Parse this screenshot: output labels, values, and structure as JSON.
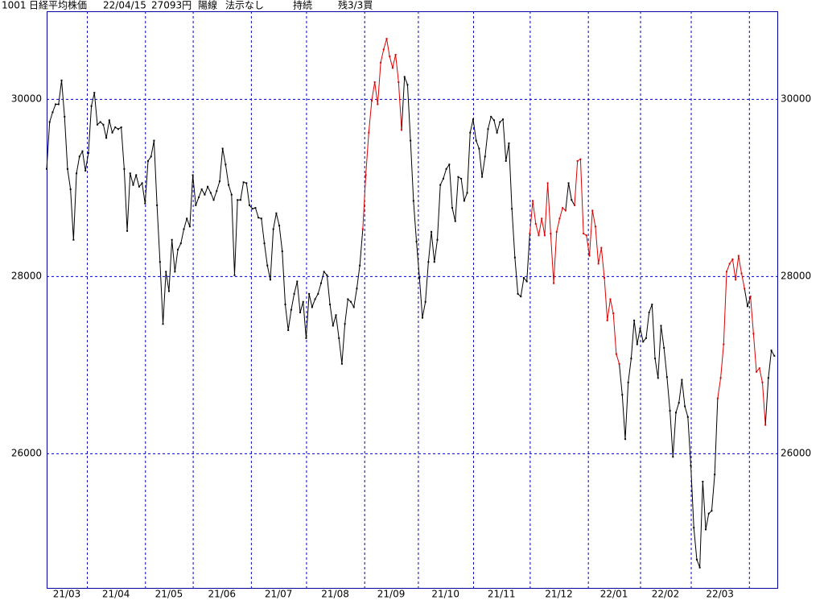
{
  "header": [
    "1001",
    "日経平均株価",
    "22/04/15",
    "27093円",
    "陽線",
    "法示なし",
    "持続",
    "残3/3買"
  ],
  "chart_data": {
    "type": "line",
    "values": [
      29210,
      29740,
      29850,
      29940,
      29940,
      30210,
      29800,
      29210,
      28980,
      28410,
      29160,
      29350,
      29410,
      29190,
      29390,
      29920,
      30070,
      29710,
      29740,
      29710,
      29560,
      29760,
      29620,
      29680,
      29660,
      29680,
      29210,
      28510,
      29160,
      29030,
      29140,
      29010,
      29050,
      28820,
      29300,
      29350,
      29530,
      28800,
      28160,
      27460,
      28050,
      27830,
      28410,
      28050,
      28300,
      28370,
      28530,
      28650,
      28560,
      29140,
      28800,
      28890,
      28980,
      28920,
      29010,
      28940,
      28860,
      28960,
      29070,
      29440,
      29260,
      29030,
      28920,
      28010,
      28860,
      28860,
      29060,
      29050,
      28800,
      28760,
      28770,
      28660,
      28650,
      28370,
      28120,
      27960,
      28530,
      28710,
      28570,
      28280,
      27680,
      27390,
      27620,
      27800,
      27940,
      27590,
      27710,
      27300,
      27800,
      27650,
      27740,
      27800,
      27920,
      28050,
      28010,
      27680,
      27440,
      27560,
      27300,
      27010,
      27460,
      27740,
      27710,
      27650,
      27860,
      28120,
      28530,
      29140,
      29620,
      29980,
      30190,
      29940,
      30410,
      30560,
      30680,
      30480,
      30350,
      30500,
      30190,
      29650,
      30250,
      30160,
      29530,
      28850,
      28390,
      27980,
      27530,
      27710,
      28160,
      28500,
      28160,
      28410,
      29030,
      29100,
      29210,
      29260,
      28770,
      28620,
      29120,
      29100,
      28850,
      28940,
      29620,
      29770,
      29530,
      29440,
      29120,
      29350,
      29660,
      29800,
      29760,
      29620,
      29740,
      29770,
      29300,
      29500,
      28760,
      28210,
      27800,
      27770,
      27980,
      27940,
      28480,
      28850,
      28590,
      28460,
      28650,
      28460,
      29050,
      28480,
      27920,
      28500,
      28650,
      28770,
      28740,
      29050,
      28860,
      28800,
      29300,
      29320,
      28480,
      28460,
      28230,
      28740,
      28560,
      28140,
      28320,
      27980,
      27500,
      27740,
      27580,
      27120,
      27010,
      26660,
      26160,
      26800,
      27070,
      27500,
      27230,
      27410,
      27260,
      27300,
      27590,
      27680,
      27070,
      26850,
      27440,
      27190,
      26860,
      26480,
      25960,
      26460,
      26570,
      26830,
      26530,
      26410,
      25860,
      25160,
      24800,
      24710,
      25680,
      25140,
      25320,
      25350,
      25760,
      26620,
      26850,
      27230,
      28050,
      28140,
      28190,
      27960,
      28230,
      28030,
      27860,
      27660,
      27770,
      27350,
      26920,
      26960,
      26800,
      26320,
      26850,
      27160,
      27100
    ],
    "color": "#000000",
    "highlight": {
      "color": "#e00000",
      "ranges": [
        [
          106,
          119
        ],
        [
          162,
          174
        ],
        [
          177,
          192
        ],
        [
          225,
          234
        ],
        [
          236,
          241
        ]
      ]
    },
    "xlim": [
      0,
      245
    ],
    "xticks": [
      {
        "value": 0,
        "label": "21/03"
      },
      {
        "value": 13.5,
        "label": "21/04"
      },
      {
        "value": 33,
        "label": "21/05"
      },
      {
        "value": 49,
        "label": "21/06"
      },
      {
        "value": 68.5,
        "label": "21/07"
      },
      {
        "value": 87,
        "label": "21/08"
      },
      {
        "value": 106.5,
        "label": "21/09"
      },
      {
        "value": 124.5,
        "label": "21/10"
      },
      {
        "value": 143,
        "label": "21/11"
      },
      {
        "value": 162,
        "label": "21/12"
      },
      {
        "value": 181.5,
        "label": "22/01"
      },
      {
        "value": 199,
        "label": "22/02"
      },
      {
        "value": 216,
        "label": "22/03"
      },
      {
        "value": 235.5,
        "label": null
      }
    ],
    "ylim": [
      24480,
      30990
    ],
    "yticks": [
      26000,
      28000,
      30000
    ],
    "grid": true
  }
}
